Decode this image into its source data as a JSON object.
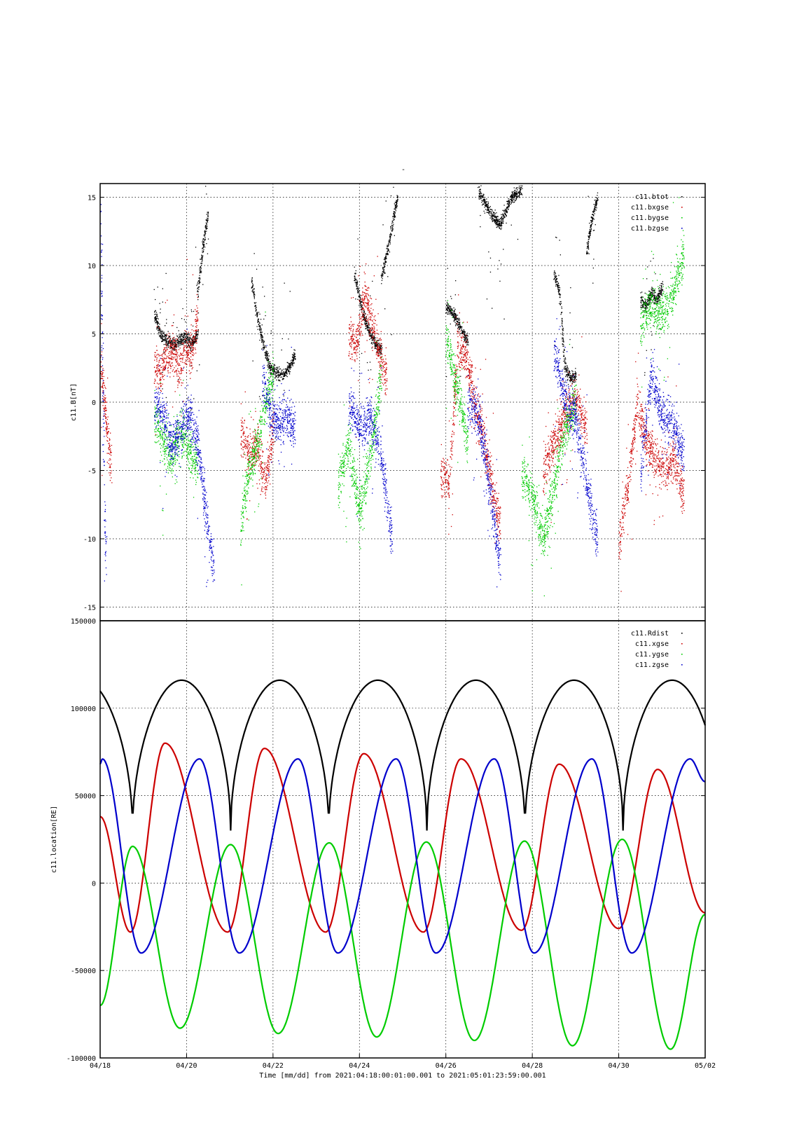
{
  "chart_data": [
    {
      "type": "scatter",
      "title": "-",
      "ylabel": "c11.B[nT]",
      "xlabel": "",
      "ylim": [
        -16,
        16
      ],
      "yticks": [
        15,
        10,
        5,
        0,
        -5,
        -10,
        -15
      ],
      "grid": true,
      "legend_position": "top-right",
      "series": [
        {
          "name": "c11.btot",
          "color": "#000000",
          "segments": [
            {
              "start": "04/19 06:00",
              "end": "04/20 06:00",
              "values": [
                6.5,
                5.0,
                4.5,
                4.2,
                4.5,
                4.8,
                4.2,
                5.0
              ]
            },
            {
              "start": "04/20 06:00",
              "end": "04/20 12:00",
              "values": [
                8.0,
                11.5,
                14.0
              ]
            },
            {
              "start": "04/21 12:00",
              "end": "04/22 12:00",
              "values": [
                9.0,
                6.0,
                4.0,
                2.5,
                2.2,
                2.0,
                2.5,
                3.5
              ]
            },
            {
              "start": "04/23 21:00",
              "end": "04/24 12:00",
              "values": [
                9.5,
                7.5,
                6.0,
                5.0,
                4.2,
                3.8
              ]
            },
            {
              "start": "04/24 12:00",
              "end": "04/24 21:00",
              "values": [
                9.0,
                12.0,
                15.0
              ]
            },
            {
              "start": "04/26 00:00",
              "end": "04/26 12:00",
              "values": [
                7.0,
                6.5,
                5.5,
                4.5
              ]
            },
            {
              "start": "04/26 18:00",
              "end": "04/27 18:00",
              "values": [
                15.5,
                14.0,
                13.0,
                15.0,
                15.5
              ]
            },
            {
              "start": "04/28 12:00",
              "end": "04/29 00:00",
              "values": [
                9.5,
                8.0,
                2.5,
                1.8,
                2.0
              ]
            },
            {
              "start": "04/29 06:00",
              "end": "04/29 12:00",
              "values": [
                11.0,
                13.5,
                15.0
              ]
            },
            {
              "start": "04/30 12:00",
              "end": "04/31 00:00",
              "values": [
                7.5,
                7.0,
                8.0,
                7.5,
                8.5
              ]
            }
          ]
        },
        {
          "name": "c11.bxgse",
          "color": "#cc0000",
          "segments": [
            {
              "start": "04/18 00:00",
              "end": "04/18 06:00",
              "values": [
                3.0,
                -1.0,
                -5.0
              ]
            },
            {
              "start": "04/19 06:00",
              "end": "04/20 06:00",
              "values": [
                3.0,
                2.0,
                3.5,
                4.0,
                2.5,
                4.0,
                3.5,
                6.5
              ]
            },
            {
              "start": "04/21 06:00",
              "end": "04/22 00:00",
              "values": [
                -2.0,
                -4.0,
                -3.0,
                -6.0,
                -2.0
              ]
            },
            {
              "start": "04/23 18:00",
              "end": "04/24 15:00",
              "values": [
                5.0,
                4.0,
                8.0,
                6.0,
                3.5,
                2.0
              ]
            },
            {
              "start": "04/25 21:00",
              "end": "04/27 06:00",
              "values": [
                -5.0,
                -6.0,
                4.0,
                3.5,
                0.0,
                -2.5,
                -6.0,
                -9.0
              ]
            },
            {
              "start": "04/28 06:00",
              "end": "04/29 06:00",
              "values": [
                -5.0,
                -3.0,
                -1.0,
                0.5,
                -2.0
              ]
            },
            {
              "start": "04/30 00:00",
              "end": "04/31 12:00",
              "values": [
                -10.0,
                -6.0,
                0.0,
                -3.0,
                -4.0,
                -5.0,
                -4.0,
                -7.0
              ]
            }
          ]
        },
        {
          "name": "c11.bygse",
          "color": "#00cc00",
          "segments": [
            {
              "start": "04/19 06:00",
              "end": "04/20 06:00",
              "values": [
                -1.0,
                -3.0,
                -4.0,
                -2.0,
                -3.5,
                -4.5
              ]
            },
            {
              "start": "04/21 06:00",
              "end": "04/22 00:00",
              "values": [
                -9.0,
                -5.0,
                -3.0,
                0.0,
                2.0
              ]
            },
            {
              "start": "04/23 12:00",
              "end": "04/24 12:00",
              "values": [
                -6.0,
                -3.0,
                -8.0,
                -4.0,
                2.0
              ]
            },
            {
              "start": "04/26 00:00",
              "end": "04/26 12:00",
              "values": [
                5.0,
                2.0,
                0.0,
                -3.0
              ]
            },
            {
              "start": "04/27 18:00",
              "end": "04/29 00:00",
              "values": [
                -5.0,
                -7.0,
                -10.0,
                -6.0,
                -2.0,
                0.0
              ]
            },
            {
              "start": "04/30 12:00",
              "end": "04/31 12:00",
              "values": [
                6.0,
                7.0,
                6.5,
                8.0,
                11.0
              ]
            }
          ]
        },
        {
          "name": "c11.bzgse",
          "color": "#0000cc",
          "segments": [
            {
              "start": "04/18 00:00",
              "end": "04/18 03:00",
              "values": [
                14.0,
                0.0,
                -12.0
              ]
            },
            {
              "start": "04/19 06:00",
              "end": "04/20 06:00",
              "values": [
                0.0,
                -1.0,
                -3.0,
                -2.0,
                -1.0,
                -3.0
              ]
            },
            {
              "start": "04/20 06:00",
              "end": "04/20 15:00",
              "values": [
                -3.0,
                -8.0,
                -12.0
              ]
            },
            {
              "start": "04/21 18:00",
              "end": "04/22 12:00",
              "values": [
                2.0,
                -1.0,
                -1.5,
                -1.0,
                -2.0
              ]
            },
            {
              "start": "04/23 18:00",
              "end": "04/24 18:00",
              "values": [
                0.0,
                -2.0,
                -1.0,
                -4.0,
                -10.0
              ]
            },
            {
              "start": "04/26 12:00",
              "end": "04/27 06:00",
              "values": [
                0.0,
                -1.0,
                -6.0,
                -12.0
              ]
            },
            {
              "start": "04/28 12:00",
              "end": "04/29 12:00",
              "values": [
                4.0,
                0.0,
                -1.0,
                -6.0,
                -10.0
              ]
            },
            {
              "start": "04/30 12:00",
              "end": "04/31 12:00",
              "values": [
                -5.0,
                2.0,
                -1.0,
                -1.5,
                -4.0
              ]
            }
          ]
        }
      ]
    },
    {
      "type": "line",
      "ylabel": "c11.location[RE]",
      "xlabel": "Time [mm/dd]  from 2021:04:18:00:01:00.001  to  2021:05:01:23:59:00.001",
      "ylim": [
        -100000,
        150000
      ],
      "yticks": [
        150000,
        100000,
        50000,
        0,
        -50000,
        -100000
      ],
      "x_ticks": [
        "04/18",
        "04/20",
        "04/22",
        "04/24",
        "04/26",
        "04/28",
        "04/30",
        "05/02"
      ],
      "grid": true,
      "legend_position": "top-right",
      "orbital_period_days": 2.27,
      "series": [
        {
          "name": "c11.Rdist",
          "color": "#000000",
          "max": 116000,
          "min": 30000,
          "first_min_day": 0.75,
          "value_at_start": 104000
        },
        {
          "name": "c11.xgse",
          "color": "#cc0000",
          "peaks": [
            [
              1.5,
              80000
            ],
            [
              3.8,
              77000
            ],
            [
              6.1,
              74000
            ],
            [
              8.35,
              71000
            ],
            [
              10.62,
              68000
            ],
            [
              12.9,
              65000
            ]
          ],
          "troughs": [
            [
              0.7,
              -28000
            ],
            [
              2.95,
              -28000
            ],
            [
              5.22,
              -28000
            ],
            [
              7.48,
              -28000
            ],
            [
              9.75,
              -27000
            ],
            [
              12.0,
              -26000
            ]
          ],
          "value_at_start": 38000,
          "value_at_end": -17000
        },
        {
          "name": "c11.ygse",
          "color": "#00cc00",
          "peaks": [
            [
              0.75,
              21000
            ],
            [
              3.02,
              22000
            ],
            [
              5.3,
              23000
            ],
            [
              7.55,
              23500
            ],
            [
              9.82,
              24000
            ],
            [
              12.08,
              25000
            ]
          ],
          "troughs": [
            [
              1.85,
              -83000
            ],
            [
              4.12,
              -86000
            ],
            [
              6.4,
              -88000
            ],
            [
              8.66,
              -90000
            ],
            [
              10.93,
              -93000
            ],
            [
              13.2,
              -95000
            ]
          ],
          "value_at_start": -70000,
          "value_at_end": -18000
        },
        {
          "name": "c11.zgse",
          "color": "#0000cc",
          "peaks": [
            [
              0.05,
              71000
            ],
            [
              2.3,
              71000
            ],
            [
              4.58,
              71000
            ],
            [
              6.85,
              71000
            ],
            [
              9.12,
              71000
            ],
            [
              11.38,
              71000
            ],
            [
              13.65,
              71000
            ]
          ],
          "troughs": [
            [
              0.95,
              -40000
            ],
            [
              3.22,
              -40000
            ],
            [
              5.5,
              -40000
            ],
            [
              7.77,
              -40000
            ],
            [
              10.04,
              -40000
            ],
            [
              12.3,
              -40000
            ]
          ],
          "value_at_start": 68000,
          "value_at_end": 58000
        }
      ]
    }
  ]
}
